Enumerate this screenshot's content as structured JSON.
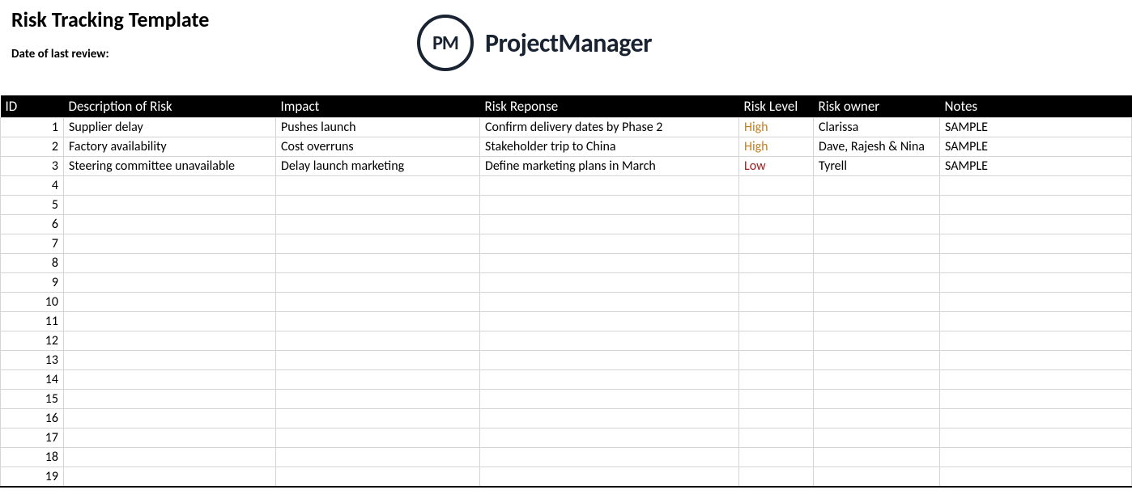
{
  "header": {
    "title": "Risk Tracking Template",
    "date_label": "Date of last review:",
    "logo_initials": "PM",
    "logo_text": "ProjectManager",
    "logo_color": "#1a2332"
  },
  "table": {
    "columns": [
      {
        "key": "id",
        "label": "ID"
      },
      {
        "key": "desc",
        "label": "Description of Risk"
      },
      {
        "key": "impact",
        "label": "Impact"
      },
      {
        "key": "response",
        "label": "Risk Reponse"
      },
      {
        "key": "level",
        "label": "Risk Level"
      },
      {
        "key": "owner",
        "label": "Risk owner"
      },
      {
        "key": "notes",
        "label": "Notes"
      }
    ],
    "header_bg": "#000000",
    "header_fg": "#ffffff",
    "border_color": "#d4d4d4",
    "row_count": 19,
    "risk_level_colors": {
      "High": "#c08028",
      "Low": "#a02020"
    },
    "rows": [
      {
        "id": "1",
        "desc": "Supplier delay",
        "impact": "Pushes launch",
        "response": "Confirm delivery dates by Phase 2",
        "level": "High",
        "owner": "Clarissa",
        "notes": "SAMPLE"
      },
      {
        "id": "2",
        "desc": "Factory availability",
        "impact": "Cost overruns",
        "response": "Stakeholder trip to China",
        "level": "High",
        "owner": "Dave, Rajesh & Nina",
        "notes": "SAMPLE"
      },
      {
        "id": "3",
        "desc": "Steering committee unavailable",
        "impact": "Delay launch marketing",
        "response": "Define marketing plans in March",
        "level": "Low",
        "owner": "Tyrell",
        "notes": "SAMPLE"
      },
      {
        "id": "4",
        "desc": "",
        "impact": "",
        "response": "",
        "level": "",
        "owner": "",
        "notes": ""
      },
      {
        "id": "5",
        "desc": "",
        "impact": "",
        "response": "",
        "level": "",
        "owner": "",
        "notes": ""
      },
      {
        "id": "6",
        "desc": "",
        "impact": "",
        "response": "",
        "level": "",
        "owner": "",
        "notes": ""
      },
      {
        "id": "7",
        "desc": "",
        "impact": "",
        "response": "",
        "level": "",
        "owner": "",
        "notes": ""
      },
      {
        "id": "8",
        "desc": "",
        "impact": "",
        "response": "",
        "level": "",
        "owner": "",
        "notes": ""
      },
      {
        "id": "9",
        "desc": "",
        "impact": "",
        "response": "",
        "level": "",
        "owner": "",
        "notes": ""
      },
      {
        "id": "10",
        "desc": "",
        "impact": "",
        "response": "",
        "level": "",
        "owner": "",
        "notes": ""
      },
      {
        "id": "11",
        "desc": "",
        "impact": "",
        "response": "",
        "level": "",
        "owner": "",
        "notes": ""
      },
      {
        "id": "12",
        "desc": "",
        "impact": "",
        "response": "",
        "level": "",
        "owner": "",
        "notes": ""
      },
      {
        "id": "13",
        "desc": "",
        "impact": "",
        "response": "",
        "level": "",
        "owner": "",
        "notes": ""
      },
      {
        "id": "14",
        "desc": "",
        "impact": "",
        "response": "",
        "level": "",
        "owner": "",
        "notes": ""
      },
      {
        "id": "15",
        "desc": "",
        "impact": "",
        "response": "",
        "level": "",
        "owner": "",
        "notes": ""
      },
      {
        "id": "16",
        "desc": "",
        "impact": "",
        "response": "",
        "level": "",
        "owner": "",
        "notes": ""
      },
      {
        "id": "17",
        "desc": "",
        "impact": "",
        "response": "",
        "level": "",
        "owner": "",
        "notes": ""
      },
      {
        "id": "18",
        "desc": "",
        "impact": "",
        "response": "",
        "level": "",
        "owner": "",
        "notes": ""
      },
      {
        "id": "19",
        "desc": "",
        "impact": "",
        "response": "",
        "level": "",
        "owner": "",
        "notes": ""
      }
    ]
  }
}
